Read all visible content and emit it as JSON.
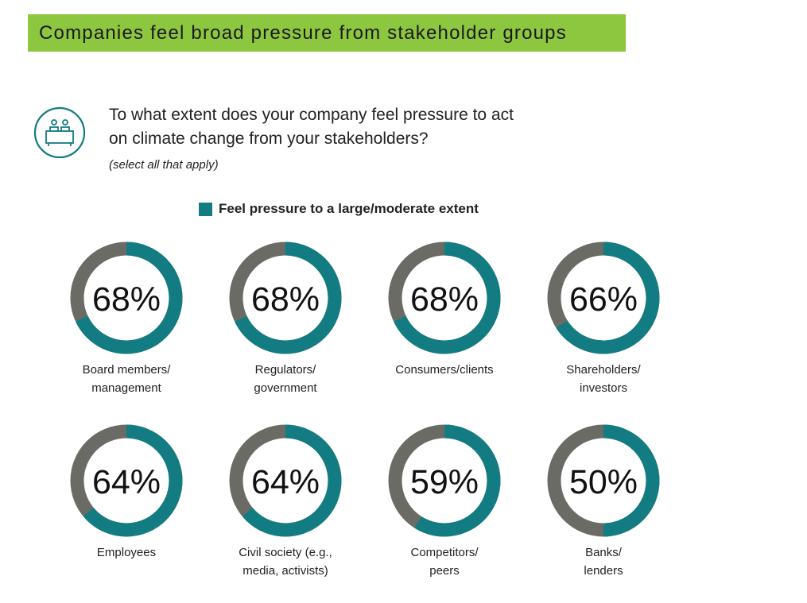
{
  "banner": {
    "title": "Companies feel broad pressure from stakeholder groups"
  },
  "question": {
    "line1": "To what extent does your company feel pressure to act",
    "line2": "on climate change from your stakeholders?",
    "note": "(select all that apply)",
    "icon": "meeting-people-icon"
  },
  "colors": {
    "banner": "#8dc63f",
    "accent": "#127c82",
    "remainder": "#6b6b66"
  },
  "chart_data": {
    "type": "pie",
    "style": "donut",
    "legend": [
      "Feel pressure to a large/moderate extent"
    ],
    "series": [
      {
        "name": "Feel pressure to a large/moderate extent",
        "unit": "%",
        "values": [
          68,
          68,
          68,
          66,
          64,
          64,
          59,
          50
        ]
      }
    ],
    "categories": [
      {
        "line1": "Board members/",
        "line2": "management",
        "label": "68%"
      },
      {
        "line1": "Regulators/",
        "line2": "government",
        "label": "68%"
      },
      {
        "line1": "Consumers/clients",
        "line2": "",
        "label": "68%"
      },
      {
        "line1": "Shareholders/",
        "line2": "investors",
        "label": "66%"
      },
      {
        "line1": "Employees",
        "line2": "",
        "label": "64%"
      },
      {
        "line1": "Civil society (e.g.,",
        "line2": "media, activists)",
        "label": "64%"
      },
      {
        "line1": "Competitors/",
        "line2": "peers",
        "label": "59%"
      },
      {
        "line1": "Banks/",
        "line2": "lenders",
        "label": "50%"
      }
    ]
  }
}
